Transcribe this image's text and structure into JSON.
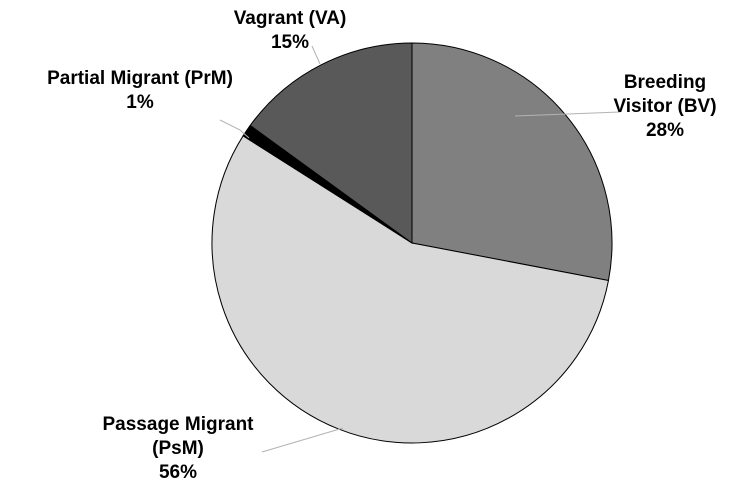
{
  "chart_data": {
    "type": "pie",
    "start_angle_deg": 0,
    "direction": "clockwise",
    "slices": [
      {
        "label_lines": [
          "Breeding",
          "Visitor (BV)"
        ],
        "value": 28,
        "value_text": "28%",
        "color": "#808080"
      },
      {
        "label_lines": [
          "Passage Migrant",
          "(PsM)"
        ],
        "value": 56,
        "value_text": "56%",
        "color": "#d9d9d9"
      },
      {
        "label_lines": [
          "Partial Migrant (PrM)"
        ],
        "value": 1,
        "value_text": "1%",
        "color": "#000000"
      },
      {
        "label_lines": [
          "Vagrant (VA)"
        ],
        "value": 15,
        "value_text": "15%",
        "color": "#595959"
      }
    ],
    "legend": "none",
    "labels": "outside with leader lines"
  }
}
